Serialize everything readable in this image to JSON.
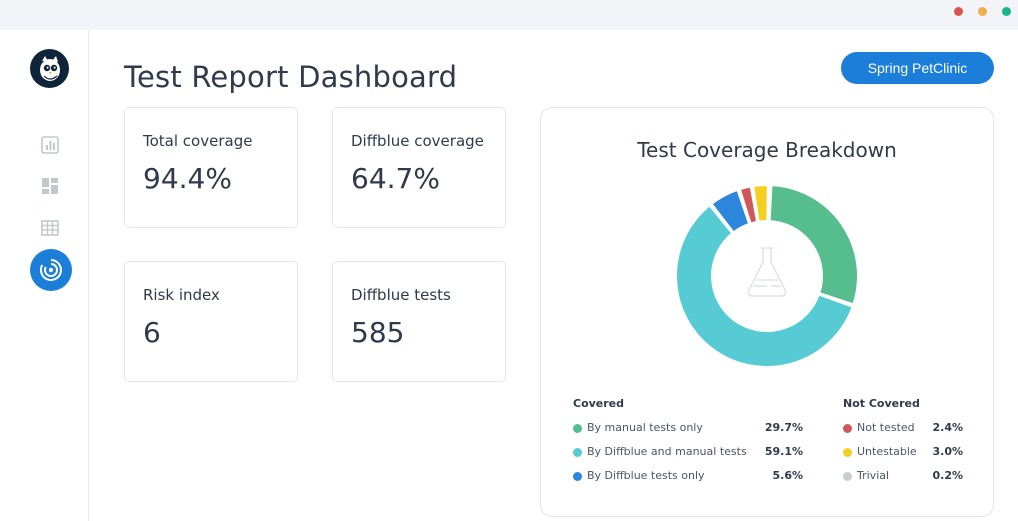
{
  "window": {
    "dots": [
      "#d9534f",
      "#f0ad4e",
      "#1bb58a"
    ]
  },
  "sidebar": {
    "items": [
      {
        "icon": "report-chart-icon"
      },
      {
        "icon": "dashboard-icon"
      },
      {
        "icon": "table-icon"
      },
      {
        "icon": "coverage-target-icon",
        "active": true
      }
    ]
  },
  "header": {
    "title": "Test Report Dashboard",
    "project_button": "Spring PetClinic"
  },
  "cards": [
    {
      "label": "Total coverage",
      "value": "94.4%"
    },
    {
      "label": "Diffblue coverage",
      "value": "64.7%"
    },
    {
      "label": "Risk index",
      "value": "6"
    },
    {
      "label": "Diffblue tests",
      "value": "585"
    }
  ],
  "chart_data": {
    "type": "pie",
    "title": "Test Coverage Breakdown",
    "center_icon": "flask-icon",
    "groups": [
      {
        "name": "Covered",
        "slices": [
          {
            "label": "By manual tests only",
            "value": 29.7,
            "display": "29.7%",
            "color": "#55bd8e"
          },
          {
            "label": "By Diffblue and manual tests",
            "value": 59.1,
            "display": "59.1%",
            "color": "#56cbd4"
          },
          {
            "label": "By Diffblue tests only",
            "value": 5.6,
            "display": "5.6%",
            "color": "#2c86dc"
          }
        ]
      },
      {
        "name": "Not Covered",
        "slices": [
          {
            "label": "Not tested",
            "value": 2.4,
            "display": "2.4%",
            "color": "#d0585a"
          },
          {
            "label": "Untestable",
            "value": 3.0,
            "display": "3.0%",
            "color": "#f4cf1f"
          },
          {
            "label": "Trivial",
            "value": 0.2,
            "display": "0.2%",
            "color": "#c9cdd2"
          }
        ]
      }
    ]
  }
}
